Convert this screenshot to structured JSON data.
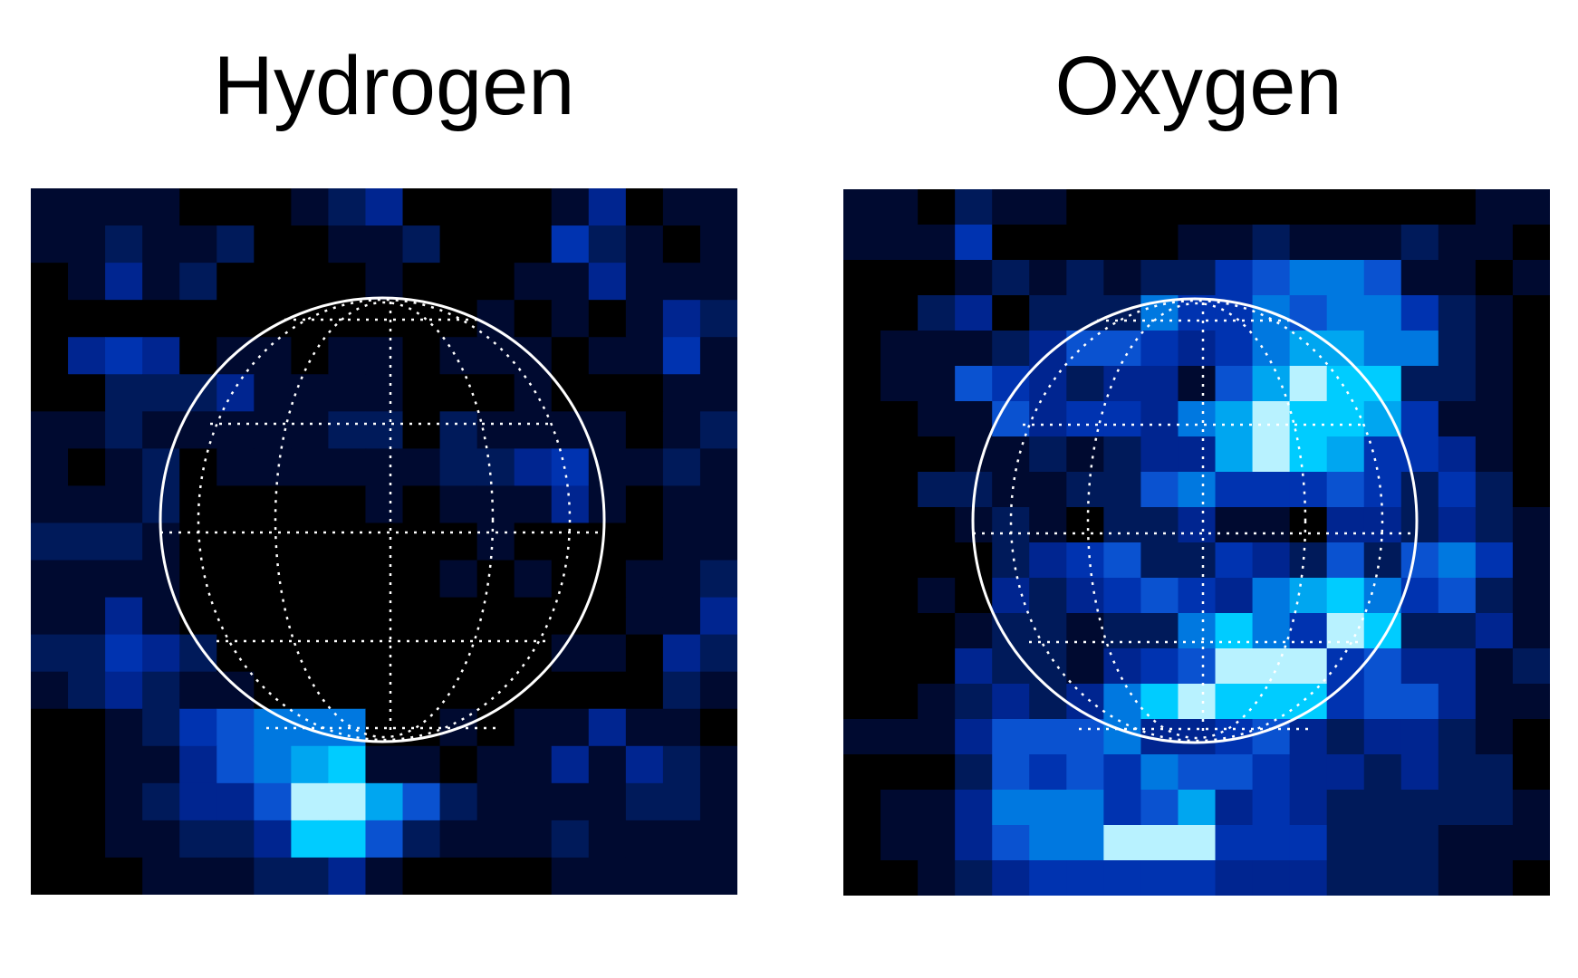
{
  "panels": [
    {
      "id": "hydrogen",
      "title": "Hydrogen",
      "grid": [
        "1111000123000013011",
        "1121120011200042101",
        "0131200001000113111",
        "0000000000001010132",
        "0343011011011101141",
        "0022231111000100011",
        "1121111122021111012",
        "1012011111122341121",
        "1112000001011131011",
        "2221000000001000011",
        "1111000000010100112",
        "1131000000000000113",
        "2243200000000011032",
        "1232110000000000021",
        "0012456660010113110",
        "0011356781101131321",
        "0012335997521111221",
        "0011223885211121111",
        "0001112231000011111"
      ],
      "colormap": [
        "#000000",
        "#000a30",
        "#001a5a",
        "#002590",
        "#0033b0",
        "#0a52d0",
        "#0078e0",
        "#00a6f0",
        "#00ccff",
        "#b8f2ff"
      ]
    },
    {
      "id": "oxygen",
      "title": "Oxygen",
      "grid": [
        "1102110000000000011",
        "1114000001121112110",
        "0001212122456651101",
        "0023022264465664210",
        "0111235543467766210",
        "0115432331579882210",
        "0011534436798874110",
        "0001121233798744310",
        "0022112256444542420",
        "0001210223110332321",
        "0000234522432525641",
        "0010323454367864521",
        "0001221226864982231",
        "0003221345999453312",
        "0012323689888455311",
        "1113555633453233210",
        "0002545465543323220",
        "0113666457343222221",
        "0113566999444222111",
        "0012344444333222110"
      ],
      "colormap": [
        "#000000",
        "#000a30",
        "#001a5a",
        "#002590",
        "#0033b0",
        "#0a52d0",
        "#0078e0",
        "#00a6f0",
        "#00ccff",
        "#b8f2ff"
      ]
    }
  ]
}
